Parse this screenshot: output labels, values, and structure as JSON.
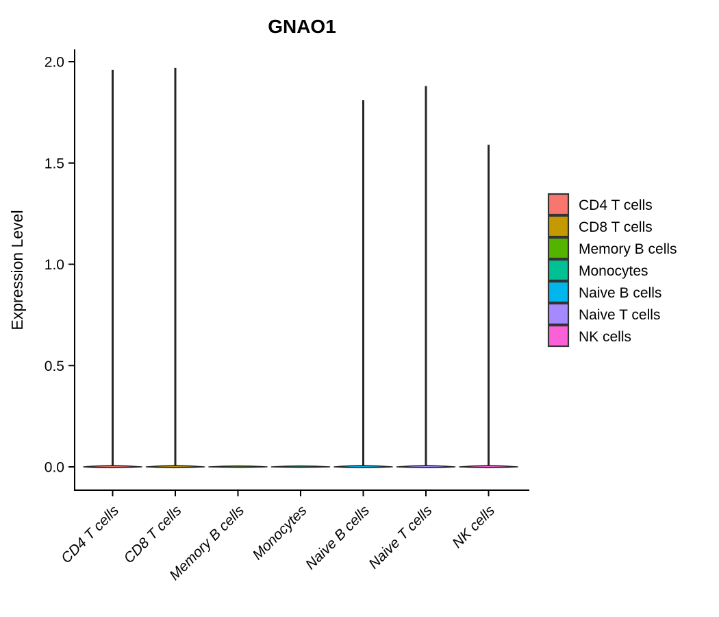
{
  "chart_data": {
    "type": "violin",
    "title": "GNAO1",
    "xlabel": "",
    "ylabel": "Expression Level",
    "y_tick_labels": [
      "0.0",
      "0.5",
      "1.0",
      "1.5",
      "2.0"
    ],
    "y_tick_values": [
      0,
      0.5,
      1.0,
      1.5,
      2.0
    ],
    "ylim": [
      0,
      2.06
    ],
    "grid": "off",
    "legend_position": "right",
    "categories": [
      "CD4 T cells",
      "CD8 T cells",
      "Memory B cells",
      "Monocytes",
      "Naive B cells",
      "Naive T cells",
      "NK cells"
    ],
    "series": [
      {
        "name": "CD4 T cells",
        "color": "#F8766D",
        "max_expression": 1.96,
        "density_concentrated_at": 0
      },
      {
        "name": "CD8 T cells",
        "color": "#C49A00",
        "max_expression": 1.97,
        "density_concentrated_at": 0
      },
      {
        "name": "Memory B cells",
        "color": "#53B400",
        "max_expression": 0,
        "density_concentrated_at": 0
      },
      {
        "name": "Monocytes",
        "color": "#00C094",
        "max_expression": 0,
        "density_concentrated_at": 0
      },
      {
        "name": "Naive B cells",
        "color": "#00B6EB",
        "max_expression": 1.81,
        "density_concentrated_at": 0
      },
      {
        "name": "Naive T cells",
        "color": "#A58AFF",
        "max_expression": 1.88,
        "density_concentrated_at": 0
      },
      {
        "name": "NK cells",
        "color": "#FB61D7",
        "max_expression": 1.59,
        "density_concentrated_at": 0
      }
    ],
    "legend": {
      "entries": [
        {
          "label": "CD4 T cells",
          "color": "#F8766D"
        },
        {
          "label": "CD8 T cells",
          "color": "#C49A00"
        },
        {
          "label": "Memory B cells",
          "color": "#53B400"
        },
        {
          "label": "Monocytes",
          "color": "#00C094"
        },
        {
          "label": "Naive B cells",
          "color": "#00B6EB"
        },
        {
          "label": "Naive T cells",
          "color": "#A58AFF"
        },
        {
          "label": "NK cells",
          "color": "#FB61D7"
        }
      ]
    },
    "colors": {
      "axis": "#000000",
      "violin_outline": "#262626",
      "legend_key_border": "#333333"
    }
  }
}
